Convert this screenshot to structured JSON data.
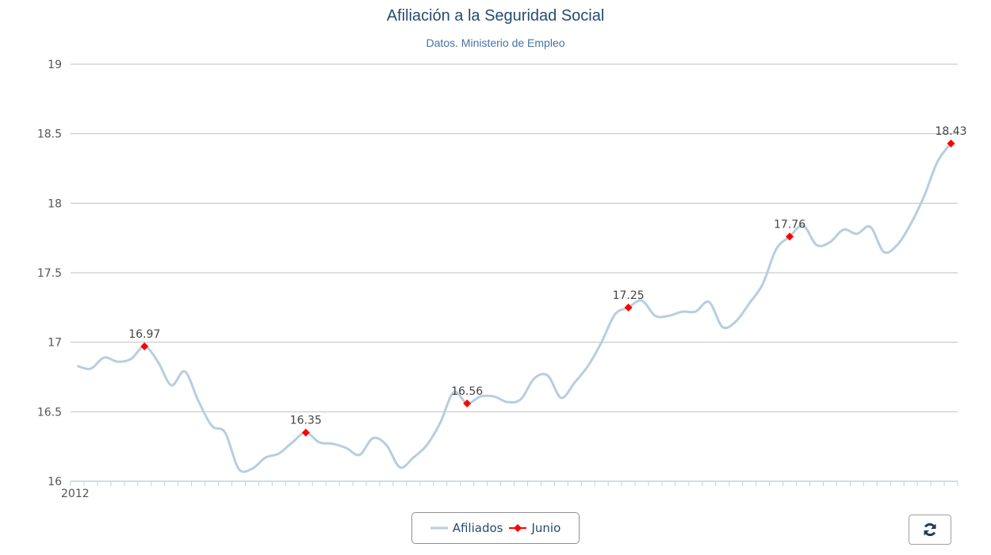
{
  "chart_data": {
    "type": "line",
    "title": "Afiliación a la Seguridad Social",
    "subtitle": "Datos. Ministerio de Empleo",
    "xlabel": "",
    "ylabel": "",
    "x_start": "2012-01",
    "x_tick_labels": [
      "2012"
    ],
    "ylim": [
      16,
      19
    ],
    "y_ticks": [
      "16",
      "16.5",
      "17",
      "17.5",
      "18",
      "18.5",
      "19"
    ],
    "grid": true,
    "legend_placement": "bottom-center",
    "series": [
      {
        "name": "Afiliados",
        "color": "#b8cde0",
        "values": [
          16.83,
          16.81,
          16.89,
          16.86,
          16.88,
          16.97,
          16.86,
          16.69,
          16.79,
          16.58,
          16.4,
          16.35,
          16.09,
          16.09,
          16.17,
          16.2,
          16.28,
          16.35,
          16.28,
          16.27,
          16.24,
          16.19,
          16.31,
          16.26,
          16.1,
          16.17,
          16.26,
          16.42,
          16.64,
          16.56,
          16.61,
          16.61,
          16.57,
          16.59,
          16.74,
          16.76,
          16.6,
          16.71,
          16.83,
          17.0,
          17.2,
          17.25,
          17.3,
          17.19,
          17.19,
          17.22,
          17.22,
          17.29,
          17.11,
          17.15,
          17.28,
          17.42,
          17.67,
          17.76,
          17.84,
          17.7,
          17.72,
          17.81,
          17.78,
          17.83,
          17.65,
          17.7,
          17.85,
          18.05,
          18.3,
          18.43
        ]
      },
      {
        "name": "Junio",
        "color": "#ff0000",
        "month_indices": [
          5,
          17,
          29,
          41,
          53,
          65
        ],
        "values": [
          16.97,
          16.35,
          16.56,
          17.25,
          17.76,
          18.43
        ],
        "labels": [
          "16.97",
          "16.35",
          "16.56",
          "17.25",
          "17.76",
          "18.43"
        ]
      }
    ]
  },
  "legend": {
    "items": [
      "Afiliados",
      "Junio"
    ]
  },
  "controls": {
    "refresh_icon": "refresh-icon"
  }
}
